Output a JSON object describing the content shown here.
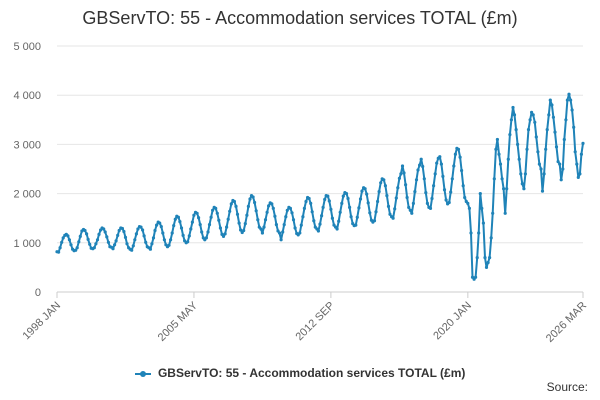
{
  "title": "GBServTO: 55 - Accommodation services TOTAL (£m)",
  "source_label": "Source:",
  "chart_data": {
    "type": "line",
    "title": "GBServTO: 55 - Accommodation services TOTAL (£m)",
    "xlabel": "",
    "ylabel": "",
    "ylim": [
      0,
      5000
    ],
    "y_ticks": [
      "0",
      "1 000",
      "2 000",
      "3 000",
      "4 000",
      "5 000"
    ],
    "x_tick_labels": [
      "1998 JAN",
      "2005 MAY",
      "2012 SEP",
      "2020 JAN",
      "2026 MAR"
    ],
    "x_range": [
      "1998 JAN",
      "2026 MAR"
    ],
    "grid": true,
    "legend_position": "bottom",
    "line_color": "#1f83b8",
    "series": [
      {
        "name": "GBServTO: 55 - Accommodation services TOTAL (£m)",
        "x": [
          "1998-01",
          "2026-03"
        ],
        "annual_data": [
          {
            "year": 1998,
            "months": [
              820,
              810,
              900,
              1010,
              1100,
              1150,
              1170,
              1140,
              1060,
              960,
              870,
              840
            ]
          },
          {
            "year": 1999,
            "months": [
              850,
              900,
              1020,
              1130,
              1240,
              1270,
              1250,
              1180,
              1070,
              970,
              890,
              880
            ]
          },
          {
            "year": 2000,
            "months": [
              900,
              980,
              1060,
              1170,
              1260,
              1300,
              1280,
              1220,
              1120,
              1010,
              920,
              910
            ]
          },
          {
            "year": 2001,
            "months": [
              880,
              960,
              1040,
              1150,
              1250,
              1300,
              1290,
              1230,
              1110,
              980,
              900,
              870
            ]
          },
          {
            "year": 2002,
            "months": [
              850,
              940,
              1060,
              1180,
              1280,
              1330,
              1320,
              1260,
              1140,
              1010,
              920,
              900
            ]
          },
          {
            "year": 2003,
            "months": [
              870,
              980,
              1100,
              1250,
              1360,
              1420,
              1400,
              1330,
              1200,
              1060,
              960,
              920
            ]
          },
          {
            "year": 2004,
            "months": [
              950,
              1060,
              1200,
              1350,
              1480,
              1540,
              1520,
              1430,
              1300,
              1150,
              1040,
              1000
            ]
          },
          {
            "year": 2005,
            "months": [
              1020,
              1140,
              1280,
              1420,
              1560,
              1620,
              1600,
              1510,
              1370,
              1220,
              1100,
              1060
            ]
          },
          {
            "year": 2006,
            "months": [
              1100,
              1220,
              1370,
              1520,
              1660,
              1720,
              1700,
              1600,
              1460,
              1300,
              1170,
              1130
            ]
          },
          {
            "year": 2007,
            "months": [
              1180,
              1320,
              1480,
              1640,
              1790,
              1860,
              1840,
              1740,
              1580,
              1400,
              1260,
              1210
            ]
          },
          {
            "year": 2008,
            "months": [
              1250,
              1390,
              1560,
              1740,
              1890,
              1960,
              1930,
              1820,
              1650,
              1470,
              1320,
              1280
            ]
          },
          {
            "year": 2009,
            "months": [
              1200,
              1320,
              1470,
              1620,
              1750,
              1810,
              1790,
              1700,
              1540,
              1370,
              1240,
              1200
            ]
          },
          {
            "year": 2010,
            "months": [
              1060,
              1220,
              1370,
              1530,
              1660,
              1720,
              1700,
              1610,
              1470,
              1300,
              1190,
              1160
            ]
          },
          {
            "year": 2011,
            "months": [
              1200,
              1360,
              1530,
              1700,
              1840,
              1920,
              1900,
              1800,
              1630,
              1450,
              1320,
              1280
            ]
          },
          {
            "year": 2012,
            "months": [
              1240,
              1380,
              1550,
              1720,
              1880,
              1960,
              1950,
              1850,
              1680,
              1500,
              1360,
              1320
            ]
          },
          {
            "year": 2013,
            "months": [
              1280,
              1440,
              1620,
              1800,
              1950,
              2020,
              2000,
              1900,
              1720,
              1530,
              1390,
              1350
            ]
          },
          {
            "year": 2014,
            "months": [
              1360,
              1520,
              1710,
              1890,
              2050,
              2120,
              2100,
              1990,
              1810,
              1610,
              1460,
              1420
            ]
          },
          {
            "year": 2015,
            "months": [
              1450,
              1630,
              1840,
              2040,
              2220,
              2300,
              2280,
              2160,
              1960,
              1740,
              1580,
              1530
            ]
          },
          {
            "year": 2016,
            "months": [
              1500,
              1690,
              1910,
              2120,
              2310,
              2400,
              2560,
              2420,
              2180,
              1920,
              1720,
              1660
            ]
          },
          {
            "year": 2017,
            "months": [
              1600,
              1800,
              2040,
              2280,
              2480,
              2580,
              2700,
              2550,
              2300,
              2020,
              1800,
              1720
            ]
          },
          {
            "year": 2018,
            "months": [
              1700,
              1900,
              2160,
              2400,
              2620,
              2720,
              2750,
              2600,
              2350,
              2080,
              1870,
              1790
            ]
          },
          {
            "year": 2019,
            "months": [
              1820,
              2030,
              2300,
              2560,
              2800,
              2920,
              2900,
              2740,
              2470,
              2160,
              1920,
              1840
            ]
          },
          {
            "year": 2020,
            "months": [
              1800,
              1700,
              1200,
              300,
              260,
              300,
              700,
              1200,
              2000,
              1700,
              1400,
              700
            ]
          },
          {
            "year": 2021,
            "months": [
              500,
              600,
              700,
              1100,
              1600,
              2300,
              2900,
              3100,
              2800,
              2600,
              2300,
              2100
            ]
          },
          {
            "year": 2022,
            "months": [
              1600,
              2100,
              2700,
              3200,
              3500,
              3750,
              3600,
              3300,
              3000,
              2700,
              2400,
              2200
            ]
          },
          {
            "year": 2023,
            "months": [
              2100,
              2400,
              2900,
              3300,
              3500,
              3650,
              3600,
              3450,
              3150,
              2850,
              2600,
              2500
            ]
          },
          {
            "year": 2024,
            "months": [
              2050,
              2400,
              2900,
              3300,
              3600,
              3900,
              3800,
              3550,
              3250,
              2950,
              2650,
              2600
            ]
          },
          {
            "year": 2025,
            "months": [
              2280,
              2500,
              3100,
              3500,
              3900,
              4020,
              3900,
              3700,
              3350,
              2850,
              2600,
              2330
            ]
          },
          {
            "year": 2026,
            "months": [
              2400,
              2800,
              3020
            ]
          }
        ]
      }
    ]
  }
}
